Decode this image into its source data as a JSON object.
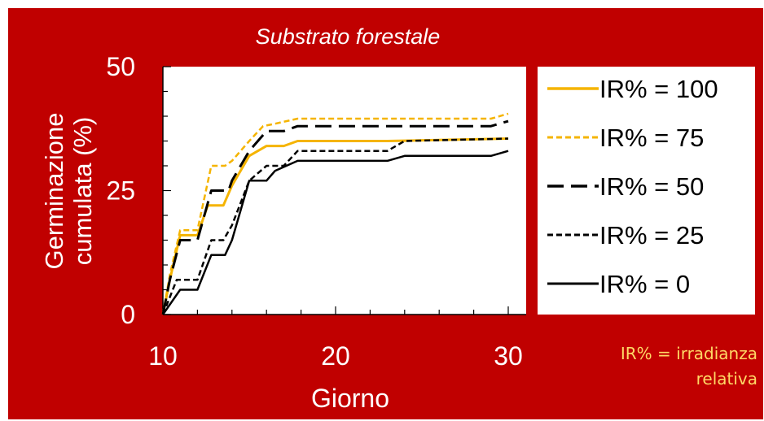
{
  "chart_data": {
    "type": "line",
    "title": "Substrato forestale",
    "xlabel": "Giorno",
    "ylabel": "Germinazione cumulata (%)",
    "xlim": [
      10,
      30
    ],
    "ylim": [
      0,
      50
    ],
    "x_ticks": [
      10,
      20,
      30
    ],
    "y_ticks": [
      0,
      25,
      50
    ],
    "legend_placement": "right",
    "series": [
      {
        "name": "IR% = 100",
        "color": "#f5b400",
        "dash": "solid",
        "width": 3,
        "points": [
          [
            10,
            0
          ],
          [
            10.4,
            7
          ],
          [
            11,
            16
          ],
          [
            12,
            16
          ],
          [
            12.6,
            22
          ],
          [
            13.5,
            22
          ],
          [
            14,
            26
          ],
          [
            15,
            32
          ],
          [
            16,
            34
          ],
          [
            17,
            34
          ],
          [
            17.8,
            35
          ],
          [
            23,
            35
          ],
          [
            30,
            35.5
          ]
        ]
      },
      {
        "name": "IR% = 75",
        "color": "#f5b400",
        "dash": "short",
        "width": 2.5,
        "points": [
          [
            10,
            0
          ],
          [
            10.4,
            8
          ],
          [
            11,
            17
          ],
          [
            12,
            17
          ],
          [
            12.8,
            30
          ],
          [
            13.6,
            30
          ],
          [
            14,
            31
          ],
          [
            15,
            35
          ],
          [
            15.8,
            38
          ],
          [
            16.5,
            38.5
          ],
          [
            17.8,
            39.5
          ],
          [
            29,
            39.5
          ],
          [
            30,
            40.5
          ]
        ]
      },
      {
        "name": "IR% = 50",
        "color": "#000000",
        "dash": "long",
        "width": 3,
        "points": [
          [
            10,
            0
          ],
          [
            10.4,
            7
          ],
          [
            11,
            15
          ],
          [
            12,
            15
          ],
          [
            12.8,
            25
          ],
          [
            13.8,
            25
          ],
          [
            14,
            27
          ],
          [
            15,
            33
          ],
          [
            16,
            37
          ],
          [
            17,
            37
          ],
          [
            17.8,
            38
          ],
          [
            29,
            38
          ],
          [
            30,
            39
          ]
        ]
      },
      {
        "name": "IR% = 25",
        "color": "#000000",
        "dash": "short",
        "width": 2.5,
        "points": [
          [
            10,
            0
          ],
          [
            10.8,
            7
          ],
          [
            12,
            7
          ],
          [
            12.8,
            15
          ],
          [
            13.5,
            15
          ],
          [
            14,
            18
          ],
          [
            15,
            27
          ],
          [
            16,
            30
          ],
          [
            17,
            30
          ],
          [
            17.8,
            33
          ],
          [
            23,
            33
          ],
          [
            24,
            35
          ],
          [
            30,
            35.5
          ]
        ]
      },
      {
        "name": "IR% = 0",
        "color": "#000000",
        "dash": "solid",
        "width": 2.5,
        "points": [
          [
            10,
            0
          ],
          [
            11,
            5
          ],
          [
            12,
            5
          ],
          [
            12.8,
            12
          ],
          [
            13.6,
            12
          ],
          [
            14,
            15
          ],
          [
            15,
            27
          ],
          [
            16,
            27
          ],
          [
            16.5,
            29
          ],
          [
            17.8,
            31
          ],
          [
            23,
            31
          ],
          [
            24,
            32
          ],
          [
            29,
            32
          ],
          [
            30,
            33
          ]
        ]
      }
    ]
  },
  "note_text": [
    "IR% = irradianza",
    "relativa"
  ]
}
